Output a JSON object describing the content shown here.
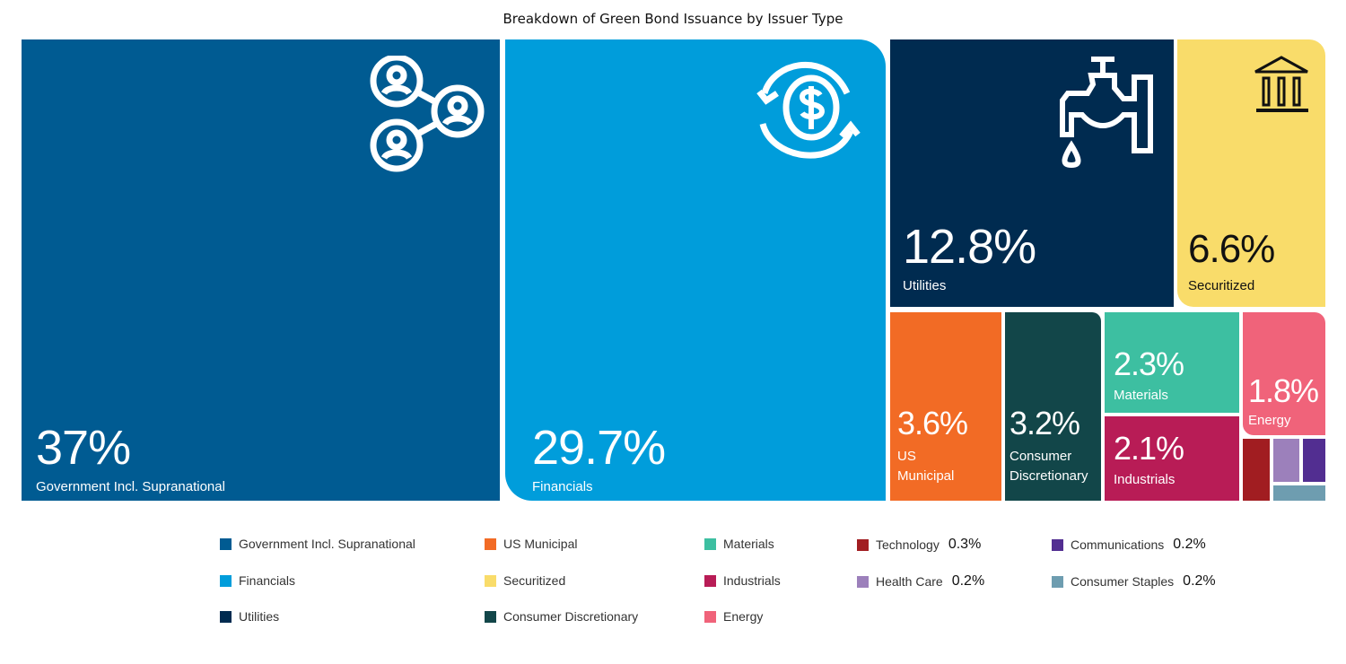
{
  "chart_data": {
    "type": "treemap",
    "title": "Breakdown of Green Bond Issuance by Issuer Type",
    "items": [
      {
        "name": "Government Incl. Supranational",
        "value": 37,
        "label": "37%",
        "color": "#005b92"
      },
      {
        "name": "Financials",
        "value": 29.7,
        "label": "29.7%",
        "color": "#009ddb"
      },
      {
        "name": "Utilities",
        "value": 12.8,
        "label": "12.8%",
        "color": "#002b50"
      },
      {
        "name": "Securitized",
        "value": 6.6,
        "label": "6.6%",
        "color": "#f9dc6a"
      },
      {
        "name": "US Municipal",
        "value": 3.6,
        "label": "3.6%",
        "color": "#f26b25"
      },
      {
        "name": "Consumer Discretionary",
        "value": 3.2,
        "label": "3.2%",
        "color": "#124649"
      },
      {
        "name": "Materials",
        "value": 2.3,
        "label": "2.3%",
        "color": "#3dbfa1"
      },
      {
        "name": "Industrials",
        "value": 2.1,
        "label": "2.1%",
        "color": "#b81c56"
      },
      {
        "name": "Energy",
        "value": 1.8,
        "label": "1.8%",
        "color": "#f0637a"
      },
      {
        "name": "Technology",
        "value": 0.3,
        "label": "0.3%",
        "color": "#a11d21"
      },
      {
        "name": "Health Care",
        "value": 0.2,
        "label": "0.2%",
        "color": "#9c80bb"
      },
      {
        "name": "Communications",
        "value": 0.2,
        "label": "0.2%",
        "color": "#522e91"
      },
      {
        "name": "Consumer Staples",
        "value": 0.2,
        "label": "0.2%",
        "color": "#6e9db0"
      }
    ],
    "tile_labels": {
      "US Municipal": [
        "US",
        "Municipal"
      ],
      "Consumer Discretionary": [
        "Consumer",
        "Discretionary"
      ]
    },
    "legend_placement": "bottom",
    "icons": {
      "Government Incl. Supranational": "people-network-icon",
      "Financials": "dollar-cycle-icon",
      "Utilities": "water-tap-icon",
      "Securitized": "bank-icon"
    }
  }
}
